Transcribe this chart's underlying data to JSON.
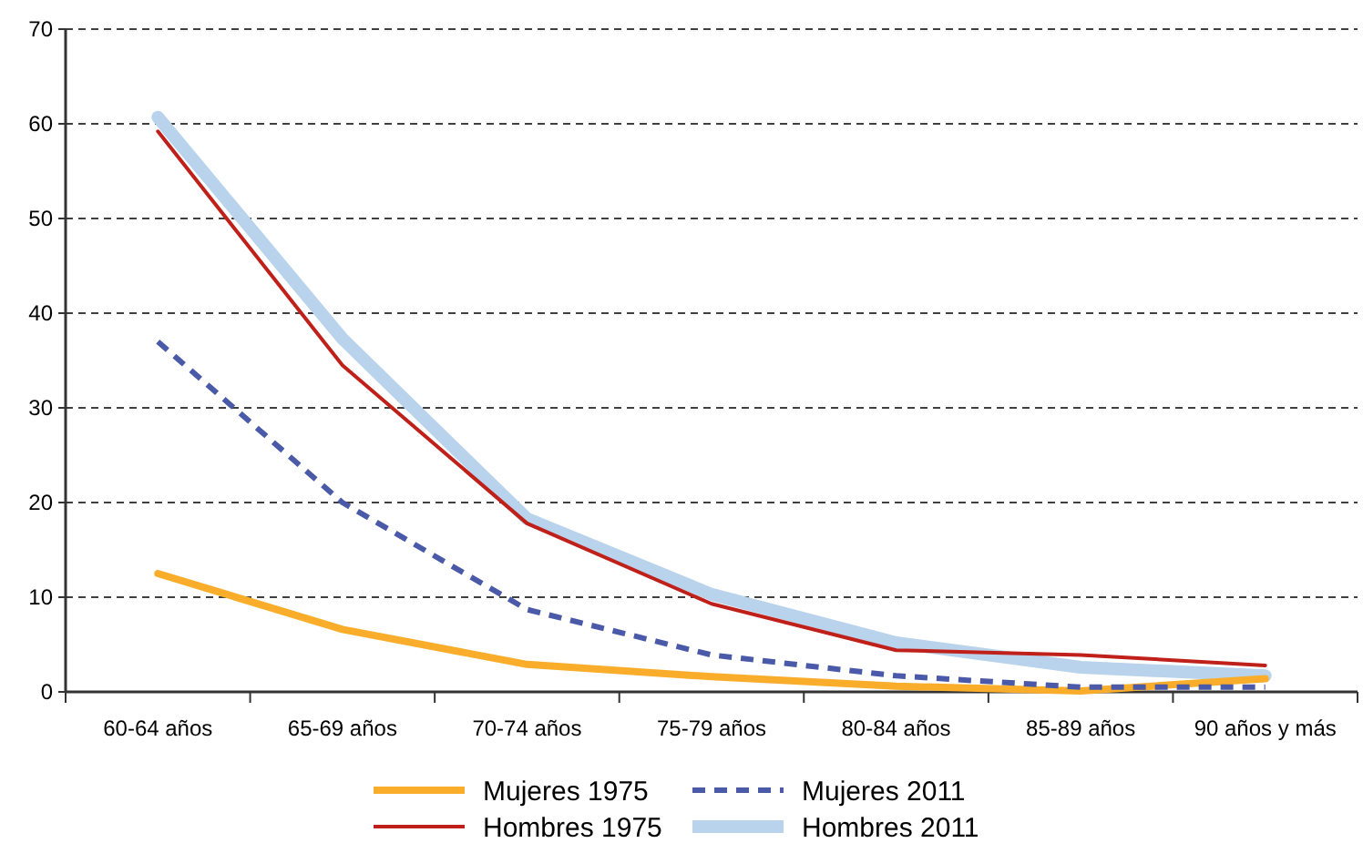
{
  "chart_data": {
    "type": "line",
    "categories": [
      "60-64 años",
      "65-69 años",
      "70-74 años",
      "75-79 años",
      "80-84 años",
      "85-89 años",
      "90 años y más"
    ],
    "ylim": [
      0,
      70
    ],
    "yticks": [
      0,
      10,
      20,
      30,
      40,
      50,
      60,
      70
    ],
    "grid": "y",
    "legend": "bottom",
    "series": [
      {
        "name": "Mujeres 1975",
        "color": "#f9ad2a",
        "values": [
          12.5,
          6.6,
          2.9,
          1.6,
          0.6,
          0.1,
          1.4
        ]
      },
      {
        "name": "Hombres 1975",
        "color": "#c0201a",
        "values": [
          59.2,
          34.5,
          17.8,
          9.3,
          4.4,
          3.9,
          2.8
        ]
      },
      {
        "name": "Mujeres 2011",
        "color": "#4a5aa8",
        "line_style": "dashed",
        "values": [
          37,
          20,
          8.7,
          3.9,
          1.7,
          0.5,
          0.5
        ]
      },
      {
        "name": "Hombres 2011",
        "color": "#b9d3ec",
        "values": [
          60.7,
          37.3,
          18.3,
          10.3,
          5.2,
          2.6,
          1.7
        ]
      }
    ]
  }
}
